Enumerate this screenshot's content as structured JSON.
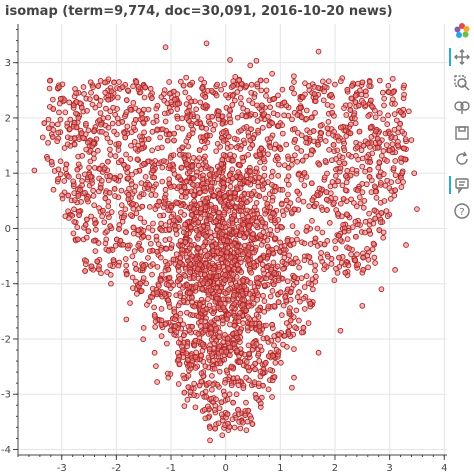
{
  "chart_data": {
    "type": "scatter",
    "title": "isomap (term=9,774, doc=30,091, 2016-10-20 news)",
    "xlabel": "",
    "ylabel": "",
    "xlim": [
      -3.8,
      4.05
    ],
    "ylim": [
      -4.1,
      3.7
    ],
    "x_ticks": [
      -3,
      -2,
      -1,
      0,
      1,
      2,
      3,
      4
    ],
    "y_ticks": [
      -4,
      -3,
      -2,
      -1,
      0,
      1,
      2,
      3
    ],
    "x_tick_labels": [
      "-3",
      "-2",
      "-1",
      "0",
      "1",
      "2",
      "3",
      "4"
    ],
    "y_tick_labels": [
      "-4",
      "-3",
      "-2",
      "-1",
      "0",
      "1",
      "2",
      "3"
    ],
    "grid": true,
    "marker_color": "#b22222",
    "marker_fill": "#e38181",
    "series": [
      {
        "values": [
          [
            -1.1,
            3.28
          ],
          [
            -0.35,
            3.35
          ],
          [
            0.08,
            3.05
          ],
          [
            0.45,
            2.95
          ],
          [
            1.7,
            3.2
          ],
          [
            0.85,
            2.8
          ],
          [
            -3.05,
            2.1
          ],
          [
            -2.55,
            2.35
          ],
          [
            -2.05,
            2.45
          ],
          [
            -1.5,
            2.6
          ],
          [
            -1.0,
            2.45
          ],
          [
            -0.45,
            2.7
          ],
          [
            0.2,
            2.6
          ],
          [
            0.75,
            2.5
          ],
          [
            1.25,
            2.65
          ],
          [
            1.85,
            2.55
          ],
          [
            2.4,
            2.45
          ],
          [
            2.9,
            2.35
          ],
          [
            3.25,
            2.15
          ],
          [
            3.4,
            1.6
          ],
          [
            3.45,
            1.0
          ],
          [
            3.5,
            0.35
          ],
          [
            3.3,
            -0.3
          ],
          [
            3.1,
            -0.75
          ],
          [
            2.85,
            -1.1
          ],
          [
            2.5,
            -1.4
          ],
          [
            2.1,
            -1.85
          ],
          [
            1.7,
            -2.25
          ],
          [
            1.25,
            -2.7
          ],
          [
            0.85,
            -3.05
          ],
          [
            0.35,
            -3.35
          ],
          [
            0.05,
            -3.65
          ],
          [
            -0.3,
            -3.4
          ],
          [
            -0.7,
            -3.1
          ],
          [
            -1.05,
            -2.7
          ],
          [
            -1.3,
            -2.25
          ],
          [
            -1.5,
            -1.8
          ],
          [
            -1.75,
            -1.35
          ],
          [
            -2.1,
            -1.0
          ],
          [
            -2.35,
            -0.6
          ],
          [
            -2.6,
            -0.2
          ],
          [
            -2.85,
            0.25
          ],
          [
            -3.15,
            0.7
          ],
          [
            -3.5,
            1.05
          ],
          [
            -3.25,
            1.55
          ],
          [
            -2.9,
            1.9
          ],
          [
            -2.3,
            1.75
          ],
          [
            -1.6,
            1.5
          ],
          [
            -0.8,
            1.45
          ],
          [
            0.0,
            1.6
          ],
          [
            0.8,
            1.5
          ],
          [
            1.6,
            1.4
          ],
          [
            2.3,
            1.3
          ],
          [
            2.8,
            0.95
          ],
          [
            -2.5,
            1.1
          ],
          [
            -1.8,
            0.9
          ],
          [
            -1.1,
            0.7
          ],
          [
            -0.4,
            0.9
          ],
          [
            0.3,
            0.8
          ],
          [
            1.0,
            0.7
          ],
          [
            1.7,
            0.6
          ],
          [
            2.4,
            0.4
          ],
          [
            -1.9,
            0.2
          ],
          [
            -1.2,
            0.0
          ],
          [
            -0.5,
            0.1
          ],
          [
            0.2,
            -0.1
          ],
          [
            0.9,
            -0.2
          ],
          [
            1.5,
            -0.5
          ],
          [
            -1.1,
            -0.6
          ],
          [
            -0.5,
            -0.8
          ],
          [
            0.1,
            -0.7
          ],
          [
            0.7,
            -0.9
          ],
          [
            -0.6,
            -1.4
          ],
          [
            0.0,
            -1.5
          ],
          [
            0.6,
            -1.6
          ],
          [
            -0.4,
            -2.1
          ],
          [
            0.1,
            -2.2
          ],
          [
            0.5,
            -2.5
          ],
          [
            -0.2,
            -2.8
          ],
          [
            0.2,
            -3.0
          ]
        ]
      }
    ]
  },
  "toolbar": {
    "tools": [
      "bokeh-logo-icon",
      "pan-icon",
      "box-zoom-icon",
      "wheel-zoom-icon",
      "save-icon",
      "reset-icon",
      "hover-icon",
      "help-icon"
    ]
  }
}
